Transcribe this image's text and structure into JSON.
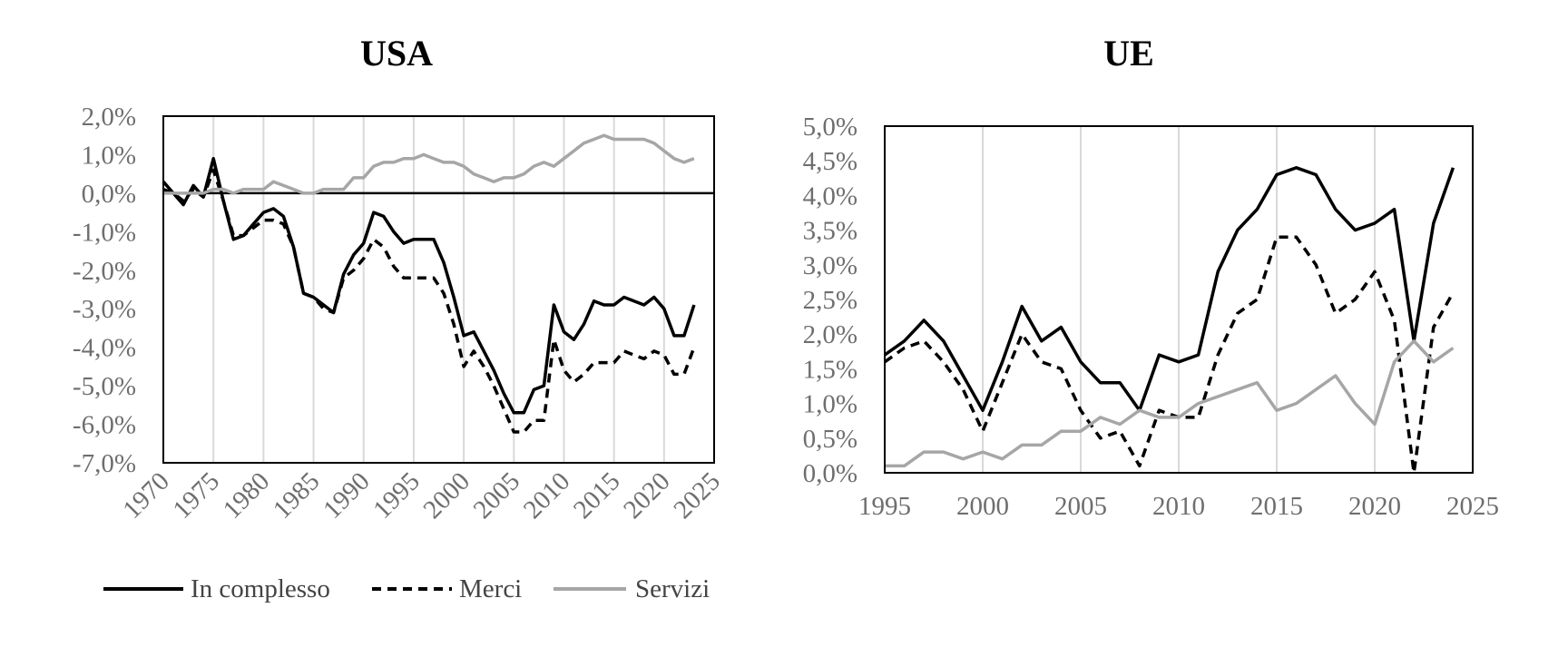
{
  "colors": {
    "overall": "#000000",
    "goods": "#000000",
    "services": "#a6a6a6",
    "grid": "#d9d9d9",
    "tick_text": "#6e6e6e"
  },
  "legend": {
    "overall": "In complesso",
    "goods": "Merci",
    "services": "Servizi"
  },
  "chart_data": [
    {
      "type": "line",
      "title": "USA",
      "xlabel": "",
      "ylabel": "",
      "xlim": [
        1970,
        2025
      ],
      "ylim": [
        -7.0,
        2.0
      ],
      "x_ticks": [
        1970,
        1975,
        1980,
        1985,
        1990,
        1995,
        2000,
        2005,
        2010,
        2015,
        2020,
        2025
      ],
      "y_ticks": [
        2,
        1,
        0,
        -1,
        -2,
        -3,
        -4,
        -5,
        -6,
        -7
      ],
      "x_tick_labels": [
        "1970",
        "1975",
        "1980",
        "1985",
        "1990",
        "1995",
        "2000",
        "2005",
        "2010",
        "2015",
        "2020",
        "2025"
      ],
      "y_tick_labels": [
        "2,0%",
        "1,0%",
        "0,0%",
        "-1,0%",
        "-2,0%",
        "-3,0%",
        "-4,0%",
        "-5,0%",
        "-6,0%",
        "-7,0%"
      ],
      "x_labels_rotated": true,
      "zero_line": true,
      "grid": "vertical",
      "x": [
        1970,
        1971,
        1972,
        1973,
        1974,
        1975,
        1976,
        1977,
        1978,
        1979,
        1980,
        1981,
        1982,
        1983,
        1984,
        1985,
        1986,
        1987,
        1988,
        1989,
        1990,
        1991,
        1992,
        1993,
        1994,
        1995,
        1996,
        1997,
        1998,
        1999,
        2000,
        2001,
        2002,
        2003,
        2004,
        2005,
        2006,
        2007,
        2008,
        2009,
        2010,
        2011,
        2012,
        2013,
        2014,
        2015,
        2016,
        2017,
        2018,
        2019,
        2020,
        2021,
        2022,
        2023
      ],
      "series": [
        {
          "name": "In complesso",
          "key": "overall",
          "style": "solid",
          "values": [
            0.3,
            0.0,
            -0.3,
            0.2,
            -0.1,
            0.9,
            -0.2,
            -1.2,
            -1.1,
            -0.8,
            -0.5,
            -0.4,
            -0.6,
            -1.4,
            -2.6,
            -2.7,
            -2.9,
            -3.1,
            -2.1,
            -1.6,
            -1.3,
            -0.5,
            -0.6,
            -1.0,
            -1.3,
            -1.2,
            -1.2,
            -1.2,
            -1.8,
            -2.7,
            -3.7,
            -3.6,
            -4.1,
            -4.6,
            -5.2,
            -5.7,
            -5.7,
            -5.1,
            -5.0,
            -2.9,
            -3.6,
            -3.8,
            -3.4,
            -2.8,
            -2.9,
            -2.9,
            -2.7,
            -2.8,
            -2.9,
            -2.7,
            -3.0,
            -3.7,
            -3.7,
            -2.9
          ]
        },
        {
          "name": "Merci",
          "key": "goods",
          "style": "dashed",
          "values": [
            0.1,
            0.0,
            -0.2,
            0.1,
            -0.1,
            0.6,
            -0.2,
            -1.1,
            -1.1,
            -0.9,
            -0.7,
            -0.7,
            -0.8,
            -1.4,
            -2.6,
            -2.7,
            -3.0,
            -3.1,
            -2.2,
            -2.0,
            -1.7,
            -1.2,
            -1.4,
            -1.9,
            -2.2,
            -2.2,
            -2.2,
            -2.2,
            -2.6,
            -3.4,
            -4.5,
            -4.1,
            -4.5,
            -5.0,
            -5.6,
            -6.2,
            -6.2,
            -5.9,
            -5.9,
            -3.8,
            -4.6,
            -4.9,
            -4.7,
            -4.4,
            -4.4,
            -4.4,
            -4.1,
            -4.2,
            -4.3,
            -4.1,
            -4.2,
            -4.7,
            -4.7,
            -4.0
          ]
        },
        {
          "name": "Servizi",
          "key": "services",
          "style": "solid",
          "values": [
            0.0,
            0.0,
            0.0,
            0.0,
            0.0,
            0.1,
            0.1,
            0.0,
            0.1,
            0.1,
            0.1,
            0.3,
            0.2,
            0.1,
            0.0,
            0.0,
            0.1,
            0.1,
            0.1,
            0.4,
            0.4,
            0.7,
            0.8,
            0.8,
            0.9,
            0.9,
            1.0,
            0.9,
            0.8,
            0.8,
            0.7,
            0.5,
            0.4,
            0.3,
            0.4,
            0.4,
            0.5,
            0.7,
            0.8,
            0.7,
            0.9,
            1.1,
            1.3,
            1.4,
            1.5,
            1.4,
            1.4,
            1.4,
            1.4,
            1.3,
            1.1,
            0.9,
            0.8,
            0.9
          ]
        }
      ]
    },
    {
      "type": "line",
      "title": "UE",
      "xlabel": "",
      "ylabel": "",
      "xlim": [
        1995,
        2025
      ],
      "ylim": [
        0.0,
        5.0
      ],
      "x_ticks": [
        1995,
        2000,
        2005,
        2010,
        2015,
        2020,
        2025
      ],
      "y_ticks": [
        5.0,
        4.5,
        4.0,
        3.5,
        3.0,
        2.5,
        2.0,
        1.5,
        1.0,
        0.5,
        0.0
      ],
      "x_tick_labels": [
        "1995",
        "2000",
        "2005",
        "2010",
        "2015",
        "2020",
        "2025"
      ],
      "y_tick_labels": [
        "5,0%",
        "4,5%",
        "4,0%",
        "3,5%",
        "3,0%",
        "2,5%",
        "2,0%",
        "1,5%",
        "1,0%",
        "0,5%",
        "0,0%"
      ],
      "x_labels_rotated": false,
      "zero_line": false,
      "grid": "vertical",
      "x": [
        1995,
        1996,
        1997,
        1998,
        1999,
        2000,
        2001,
        2002,
        2003,
        2004,
        2005,
        2006,
        2007,
        2008,
        2009,
        2010,
        2011,
        2012,
        2013,
        2014,
        2015,
        2016,
        2017,
        2018,
        2019,
        2020,
        2021,
        2022,
        2023,
        2024
      ],
      "series": [
        {
          "name": "In complesso",
          "key": "overall",
          "style": "solid",
          "values": [
            1.7,
            1.9,
            2.2,
            1.9,
            1.4,
            0.9,
            1.6,
            2.4,
            1.9,
            2.1,
            1.6,
            1.3,
            1.3,
            0.9,
            1.7,
            1.6,
            1.7,
            2.9,
            3.5,
            3.8,
            4.3,
            4.4,
            4.3,
            3.8,
            3.5,
            3.6,
            3.8,
            1.9,
            3.6,
            4.4
          ]
        },
        {
          "name": "Merci",
          "key": "goods",
          "style": "dashed",
          "values": [
            1.6,
            1.8,
            1.9,
            1.6,
            1.2,
            0.6,
            1.3,
            2.0,
            1.6,
            1.5,
            0.9,
            0.5,
            0.6,
            0.1,
            0.9,
            0.8,
            0.8,
            1.7,
            2.3,
            2.5,
            3.4,
            3.4,
            3.0,
            2.3,
            2.5,
            2.9,
            2.2,
            0.0,
            2.1,
            2.6
          ]
        },
        {
          "name": "Servizi",
          "key": "services",
          "style": "solid",
          "values": [
            0.1,
            0.1,
            0.3,
            0.3,
            0.2,
            0.3,
            0.2,
            0.4,
            0.4,
            0.6,
            0.6,
            0.8,
            0.7,
            0.9,
            0.8,
            0.8,
            1.0,
            1.1,
            1.2,
            1.3,
            0.9,
            1.0,
            1.2,
            1.4,
            1.0,
            0.7,
            1.6,
            1.9,
            1.6,
            1.8
          ]
        }
      ]
    }
  ]
}
